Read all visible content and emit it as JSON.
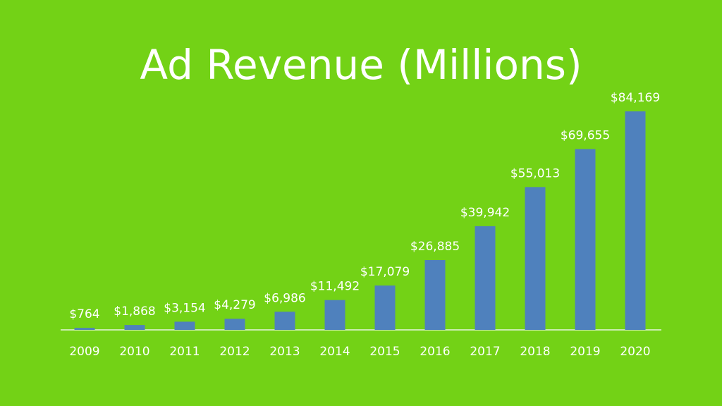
{
  "chart_data": {
    "type": "bar",
    "title": "Ad Revenue (Millions)",
    "categories": [
      "2009",
      "2010",
      "2011",
      "2012",
      "2013",
      "2014",
      "2015",
      "2016",
      "2017",
      "2018",
      "2019",
      "2020"
    ],
    "values": [
      764,
      1868,
      3154,
      4279,
      6986,
      11492,
      17079,
      26885,
      39942,
      55013,
      69655,
      84169
    ],
    "data_labels": [
      "$764",
      "$1,868",
      "$3,154",
      "$4,279",
      "$6,986",
      "$11,492",
      "$17,079",
      "$26,885",
      "$39,942",
      "$55,013",
      "$69,655",
      "$84,169"
    ],
    "xlabel": "",
    "ylabel": "",
    "ylim": [
      0,
      84169
    ],
    "grid": false,
    "legend": "none",
    "colors": {
      "background": "#73d216",
      "bar": "#4f81bd",
      "axis": "#e8f5e0",
      "text": "#ffffff"
    }
  }
}
